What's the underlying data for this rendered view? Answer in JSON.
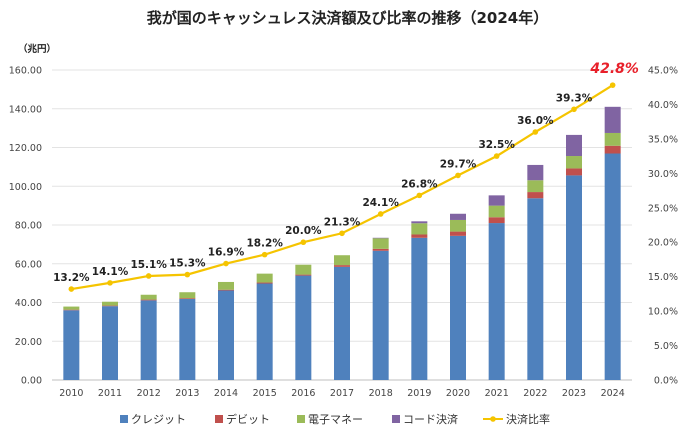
{
  "chart_data": {
    "type": "bar",
    "title": "我が国のキャッシュレス決済額及び比率の推移（2024年）",
    "y_unit": "（兆円）",
    "categories": [
      "2010",
      "2011",
      "2012",
      "2013",
      "2014",
      "2015",
      "2016",
      "2017",
      "2018",
      "2019",
      "2020",
      "2021",
      "2022",
      "2023",
      "2024"
    ],
    "stacked": true,
    "series": [
      {
        "name": "クレジット",
        "color": "#4f81bd",
        "values": [
          36.0,
          38.1,
          41.1,
          41.8,
          46.2,
          49.8,
          53.9,
          58.4,
          66.7,
          73.4,
          74.4,
          81.0,
          93.8,
          105.6,
          116.9
        ]
      },
      {
        "name": "デビット",
        "color": "#c0504d",
        "values": [
          0.3,
          0.3,
          0.4,
          0.4,
          0.4,
          0.5,
          0.5,
          0.9,
          1.0,
          1.7,
          2.2,
          3.0,
          3.2,
          3.6,
          4.0
        ]
      },
      {
        "name": "電子マネー",
        "color": "#9bbb59",
        "values": [
          1.6,
          2.0,
          2.5,
          3.1,
          4.0,
          4.6,
          5.1,
          5.1,
          5.5,
          5.8,
          6.0,
          6.0,
          6.1,
          6.4,
          6.6
        ]
      },
      {
        "name": "コード決済",
        "color": "#8064a2",
        "values": [
          0,
          0,
          0,
          0,
          0,
          0,
          0,
          0,
          0.2,
          1.0,
          3.2,
          5.3,
          7.9,
          10.9,
          13.5
        ]
      }
    ],
    "line_series": {
      "name": "決済比率",
      "color": "#f5c400",
      "values": [
        13.2,
        14.1,
        15.1,
        15.3,
        16.9,
        18.2,
        20.0,
        21.3,
        24.1,
        26.8,
        29.7,
        32.5,
        36.0,
        39.3,
        42.8
      ],
      "labels": [
        "13.2%",
        "14.1%",
        "15.1%",
        "15.3%",
        "16.9%",
        "18.2%",
        "20.0%",
        "21.3%",
        "24.1%",
        "26.8%",
        "29.7%",
        "32.5%",
        "36.0%",
        "39.3%",
        "42.8%"
      ],
      "highlight_index": 14,
      "highlight_color": "#e8202a"
    },
    "y_left": {
      "min": 0,
      "max": 160,
      "step": 20,
      "ticks": [
        "0.00",
        "20.00",
        "40.00",
        "60.00",
        "80.00",
        "100.00",
        "120.00",
        "140.00",
        "160.00"
      ]
    },
    "y_right": {
      "min": 0,
      "max": 45,
      "step": 5,
      "ticks": [
        "0.0%",
        "5.0%",
        "10.0%",
        "15.0%",
        "20.0%",
        "25.0%",
        "30.0%",
        "35.0%",
        "40.0%",
        "45.0%"
      ]
    },
    "grid": true,
    "legend_position": "bottom"
  }
}
